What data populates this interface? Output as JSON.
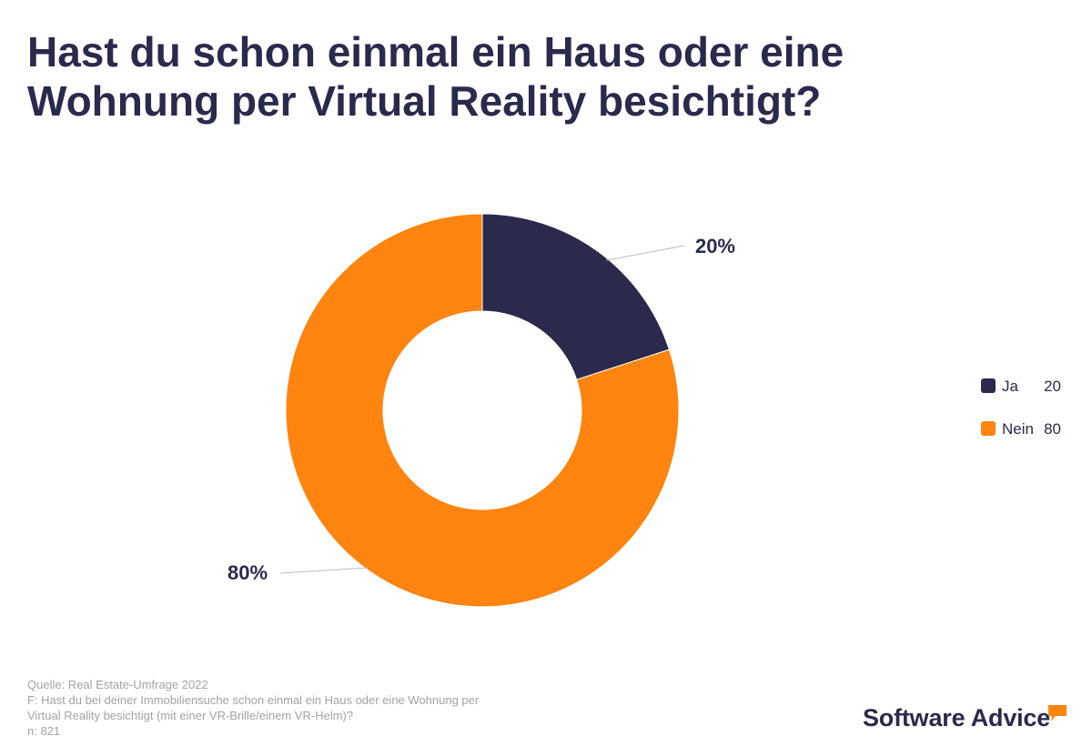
{
  "title": "Hast du schon einmal ein Haus oder eine Wohnung per Virtual Reality besichtigt?",
  "chart_data": {
    "type": "pie",
    "variant": "donut",
    "title": "Hast du schon einmal ein Haus oder eine Wohnung per Virtual Reality besichtigt?",
    "categories": [
      "Ja",
      "Nein"
    ],
    "values": [
      20,
      80
    ],
    "data_labels": [
      "20%",
      "80%"
    ],
    "colors": [
      "#2b2a4c",
      "#ff8410"
    ],
    "legend_position": "right"
  },
  "legend": [
    {
      "label": "Ja",
      "value": "20",
      "color": "#2b2a4c"
    },
    {
      "label": "Nein",
      "value": "80",
      "color": "#ff8410"
    }
  ],
  "footer": {
    "source": "Quelle: Real Estate-Umfrage 2022",
    "question_line1": "F: Hast du bei deiner Immobiliensuche schon einmal ein Haus oder eine Wohnung per",
    "question_line2": "Virtual Reality besichtigt (mit einer VR-Brille/einem VR-Helm)?",
    "sample": "n: 821"
  },
  "brand": {
    "name": "Software Advice",
    "color": "#ff8410"
  }
}
